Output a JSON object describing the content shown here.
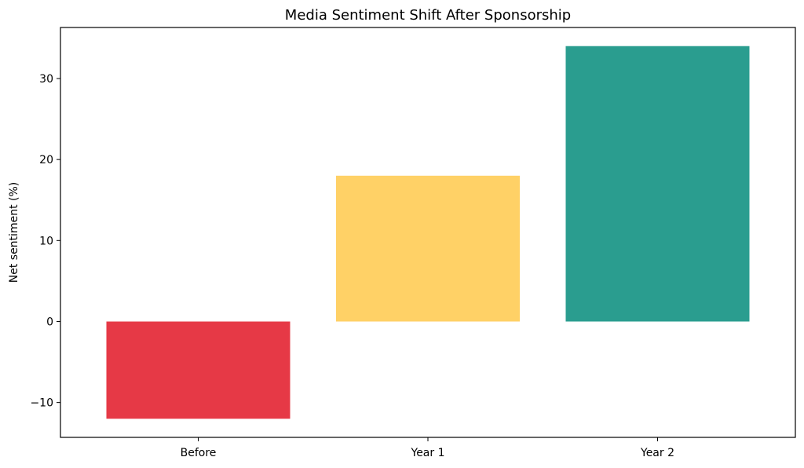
{
  "chart_data": {
    "type": "bar",
    "title": "Media Sentiment Shift After Sponsorship",
    "xlabel": "",
    "ylabel": "Net sentiment (%)",
    "categories": [
      "Before",
      "Year 1",
      "Year 2"
    ],
    "values": [
      -12,
      18,
      34
    ],
    "colors": [
      "#e63946",
      "#ffd166",
      "#2a9d8f"
    ],
    "ylim": [
      -14.3,
      36.3
    ],
    "yticks": [
      -10,
      0,
      10,
      20,
      30
    ],
    "ytick_labels": [
      "−10",
      "0",
      "10",
      "20",
      "30"
    ],
    "grid": false,
    "legend": "none"
  }
}
